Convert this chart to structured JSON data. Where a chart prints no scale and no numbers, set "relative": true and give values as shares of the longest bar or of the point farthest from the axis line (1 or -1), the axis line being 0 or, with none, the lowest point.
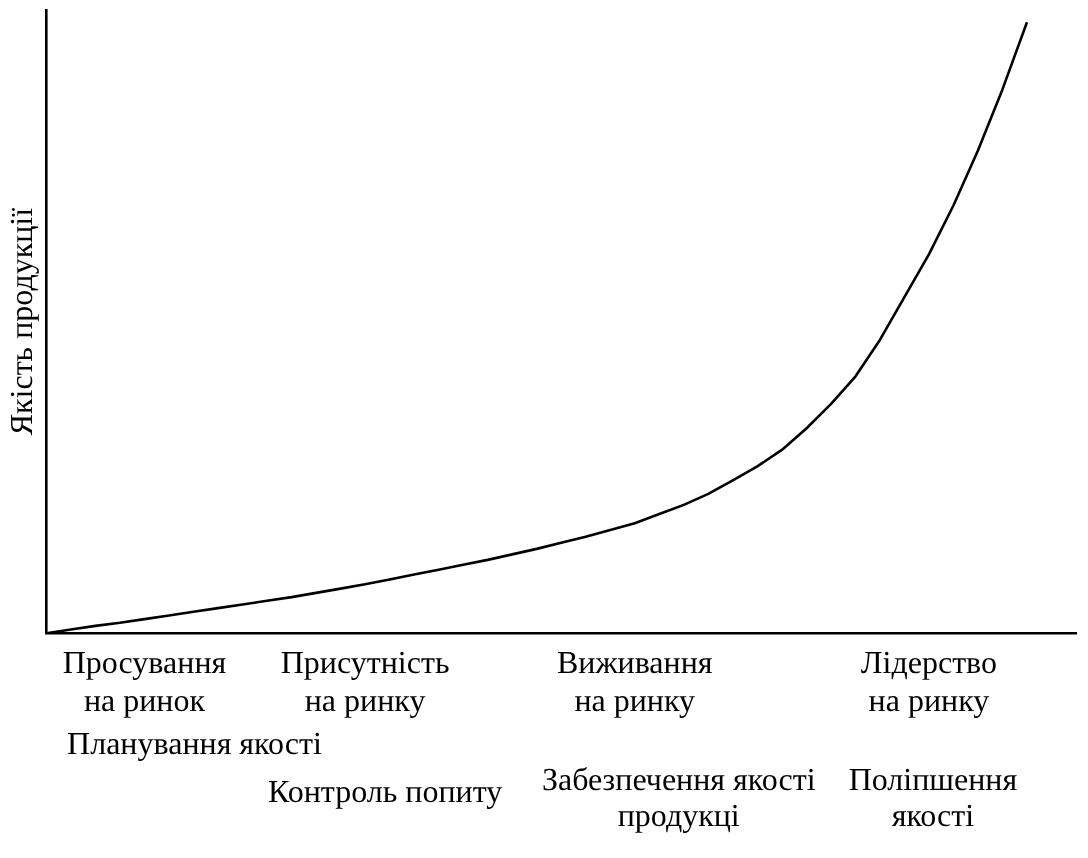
{
  "chart_data": {
    "type": "line",
    "relative": true,
    "ylabel": "Якість продукції",
    "grid": false,
    "legend": false,
    "marker": "none",
    "line_style": "solid",
    "categories": [
      null,
      null,
      null,
      null,
      "Просування на ринок",
      null,
      null,
      null,
      null,
      null,
      null,
      null,
      null,
      "Присутність на ринку",
      null,
      null,
      null,
      null,
      null,
      null,
      null,
      null,
      null,
      null,
      "Виживання на ринку",
      null,
      null,
      null,
      null,
      null,
      null,
      null,
      null,
      null,
      null,
      null,
      "Лідерство на ринку",
      null,
      null,
      null,
      null,
      null,
      null
    ],
    "series": [
      {
        "color": "#000000",
        "values": [
          0,
          0.006,
          0.012,
          0.017,
          0.023,
          0.029,
          0.035,
          0.041,
          0.047,
          0.053,
          0.059,
          0.066,
          0.073,
          0.08,
          0.088,
          0.096,
          0.104,
          0.112,
          0.12,
          0.129,
          0.138,
          0.148,
          0.158,
          0.169,
          0.18,
          0.195,
          0.21,
          0.228,
          0.25,
          0.273,
          0.3,
          0.335,
          0.375,
          0.42,
          0.48,
          0.55,
          0.62,
          0.7,
          0.79,
          0.89,
          1,
          null,
          null
        ]
      }
    ],
    "annotations": [
      "Планування якості",
      "Контроль попиту",
      "Забезпечення якості продукці",
      "Поліпшення якості"
    ]
  }
}
